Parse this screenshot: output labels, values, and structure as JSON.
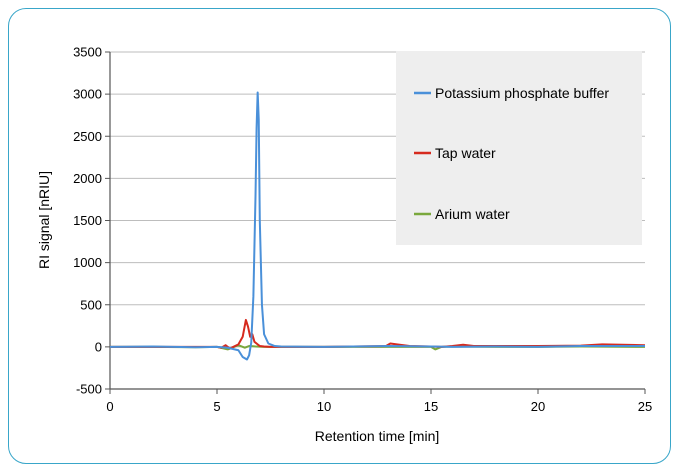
{
  "chart_data": {
    "type": "line",
    "title": "",
    "xlabel": "Retention time [min]",
    "ylabel": "RI signal [nRIU]",
    "xlim": [
      0,
      25
    ],
    "ylim": [
      -500,
      3500
    ],
    "xticks": [
      0,
      5,
      10,
      15,
      20,
      25
    ],
    "yticks": [
      -500,
      0,
      500,
      1000,
      1500,
      2000,
      2500,
      3000,
      3500
    ],
    "grid": "horizontal",
    "legend_position": "top-right",
    "series": [
      {
        "name": "Potassium phosphate buffer",
        "color": "#4a90d9",
        "x": [
          0,
          2,
          4,
          5,
          5.5,
          6.0,
          6.2,
          6.4,
          6.5,
          6.6,
          6.7,
          6.8,
          6.85,
          6.9,
          6.95,
          7.0,
          7.1,
          7.2,
          7.4,
          7.7,
          8,
          10,
          13,
          15,
          16,
          18,
          20,
          22,
          25
        ],
        "y": [
          0,
          5,
          -5,
          0,
          -10,
          -40,
          -120,
          -150,
          -100,
          50,
          600,
          1800,
          2600,
          3020,
          2700,
          1500,
          500,
          150,
          40,
          10,
          5,
          0,
          10,
          5,
          0,
          5,
          0,
          10,
          10
        ]
      },
      {
        "name": "Tap water",
        "color": "#d62a1e",
        "x": [
          0,
          2,
          4,
          5,
          5.2,
          5.4,
          5.6,
          6.0,
          6.2,
          6.35,
          6.45,
          6.55,
          6.65,
          6.75,
          6.9,
          7.0,
          7.2,
          7.5,
          8,
          10,
          12.9,
          13.1,
          13.4,
          14,
          15,
          15.5,
          16,
          16.5,
          17,
          20,
          22,
          23,
          25
        ],
        "y": [
          0,
          0,
          0,
          0,
          -10,
          20,
          -20,
          30,
          120,
          320,
          240,
          120,
          150,
          60,
          30,
          10,
          5,
          0,
          0,
          0,
          10,
          40,
          30,
          10,
          5,
          0,
          10,
          25,
          10,
          10,
          15,
          30,
          20
        ]
      },
      {
        "name": "Arium water",
        "color": "#7aa83c",
        "x": [
          0,
          2,
          4,
          5,
          5.5,
          6.0,
          6.3,
          6.5,
          6.8,
          7.2,
          8,
          10,
          12,
          14,
          15,
          15.2,
          15.5,
          16,
          18,
          20,
          22,
          25
        ],
        "y": [
          0,
          0,
          -5,
          0,
          -30,
          20,
          -10,
          10,
          5,
          0,
          0,
          0,
          0,
          0,
          0,
          -30,
          0,
          5,
          0,
          0,
          5,
          0
        ]
      }
    ]
  }
}
